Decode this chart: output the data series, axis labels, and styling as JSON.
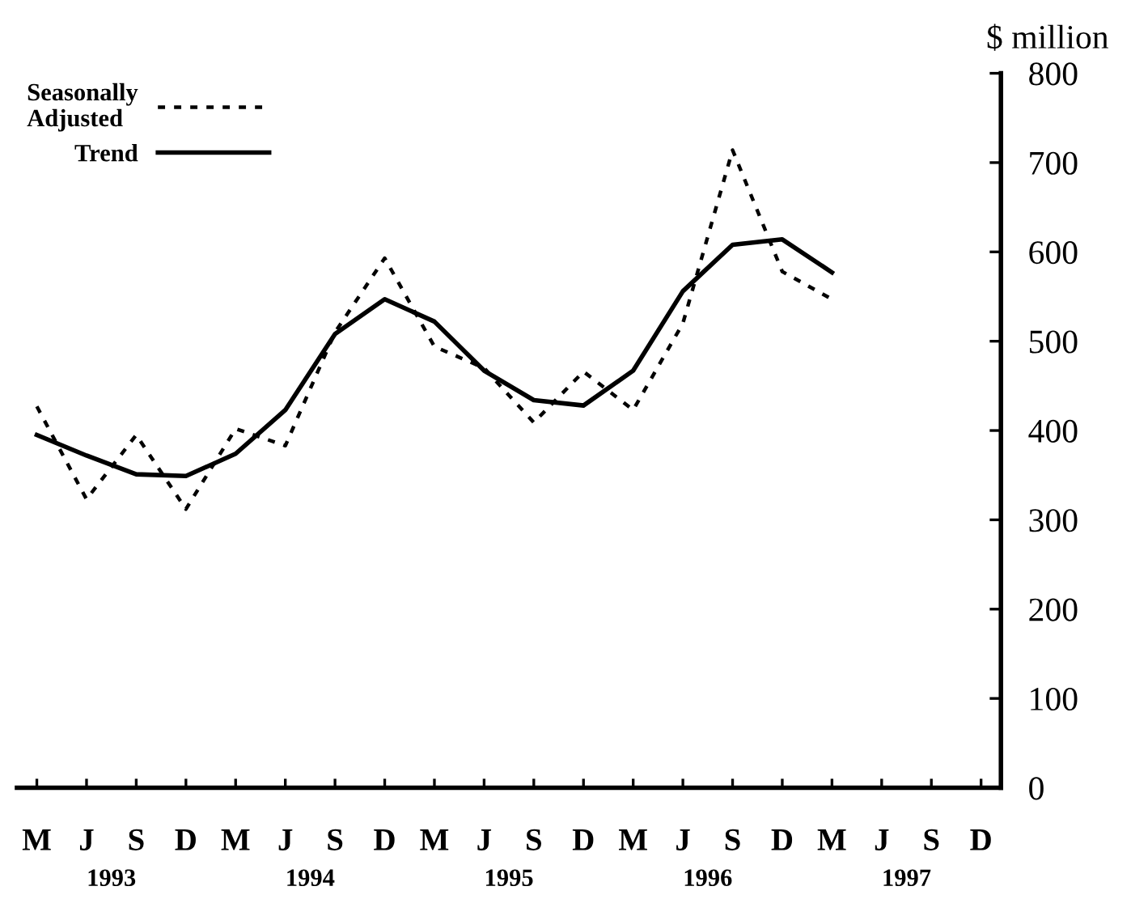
{
  "chart_data": {
    "type": "line",
    "categories": [
      "M",
      "J",
      "S",
      "D",
      "M",
      "J",
      "S",
      "D",
      "M",
      "J",
      "S",
      "D",
      "M",
      "J",
      "S",
      "D",
      "M",
      "J",
      "S",
      "D"
    ],
    "series": [
      {
        "name": "Seasonally\nAdjusted",
        "color": "#000000",
        "line_style": "dotted",
        "values": [
          427,
          323,
          395,
          312,
          402,
          383,
          510,
          593,
          494,
          470,
          409,
          466,
          423,
          520,
          714,
          578,
          547,
          null,
          null,
          null
        ]
      },
      {
        "name": "Trend",
        "color": "#000000",
        "line_style": "solid",
        "values": [
          395,
          372,
          351,
          349,
          374,
          423,
          508,
          547,
          522,
          467,
          434,
          428,
          467,
          556,
          608,
          614,
          577,
          null,
          null,
          null
        ]
      }
    ],
    "ylabel": "$ million",
    "ylim": [
      0,
      800
    ],
    "yticks": [
      0,
      100,
      200,
      300,
      400,
      500,
      600,
      700,
      800
    ],
    "annotations": [
      "1993",
      "1994",
      "1995",
      "1996",
      "1997"
    ],
    "legend": "top left",
    "grid": false,
    "marker": "none"
  }
}
